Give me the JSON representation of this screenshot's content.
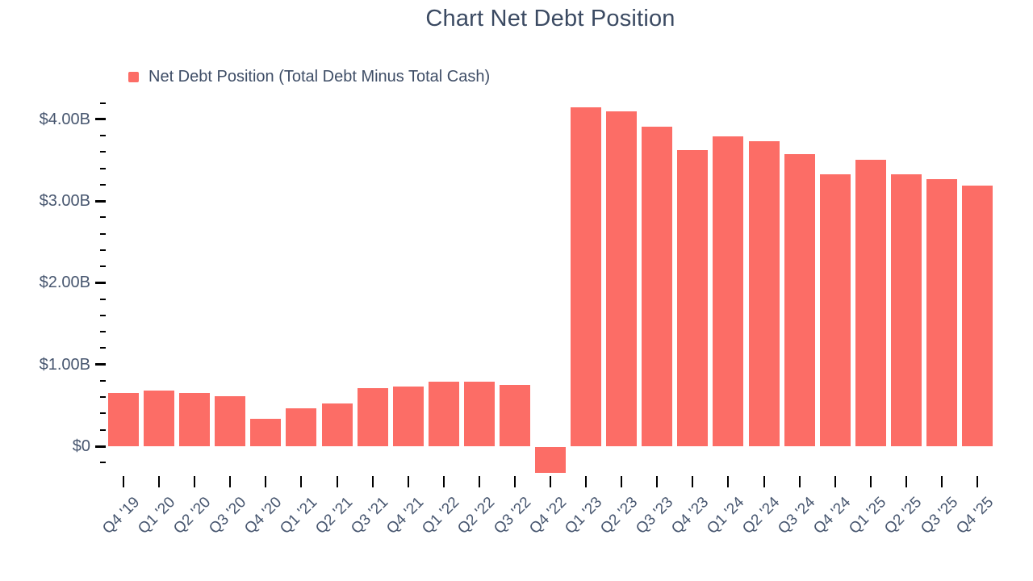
{
  "page": {
    "background_color": "#ffffff",
    "title_color": "#3b4a62",
    "label_color": "#47566f",
    "tick_color": "#000000"
  },
  "chart": {
    "title": "Chart Net Debt Position",
    "legend": {
      "label": "Net Debt Position (Total Debt Minus Total Cash)",
      "marker_color": "#fc6d66"
    }
  },
  "chart_data": {
    "type": "bar",
    "title": "Chart Net Debt Position",
    "unit": "USD billions",
    "categories": [
      "Q4 '19",
      "Q1 '20",
      "Q2 '20",
      "Q3 '20",
      "Q4 '20",
      "Q1 '21",
      "Q2 '21",
      "Q3 '21",
      "Q4 '21",
      "Q1 '22",
      "Q2 '22",
      "Q3 '22",
      "Q4 '22",
      "Q1 '23",
      "Q2 '23",
      "Q3 '23",
      "Q4 '23",
      "Q1 '24",
      "Q2 '24",
      "Q3 '24",
      "Q4 '24",
      "Q1 '25",
      "Q2 '25",
      "Q3 '25",
      "Q4 '25"
    ],
    "series": [
      {
        "name": "Net Debt Position (Total Debt Minus Total Cash)",
        "color": "#fc6d66",
        "values": [
          0.65,
          0.68,
          0.65,
          0.61,
          0.34,
          0.46,
          0.52,
          0.71,
          0.73,
          0.79,
          0.79,
          0.75,
          -0.32,
          4.15,
          4.1,
          3.91,
          3.62,
          3.79,
          3.73,
          3.57,
          3.33,
          3.5,
          3.33,
          3.27,
          3.19
        ]
      }
    ],
    "xlabel": "",
    "ylabel": "",
    "ytick_values": [
      0,
      1,
      2,
      3,
      4
    ],
    "ytick_labels": [
      "$0",
      "$1.00B",
      "$2.00B",
      "$3.00B",
      "$4.00B"
    ],
    "minor_tick_step": 0.2,
    "axis_range": [
      -0.2,
      4.2
    ],
    "grid": false,
    "legend_position": "top-left",
    "x_labels_rotation_deg": -45
  }
}
